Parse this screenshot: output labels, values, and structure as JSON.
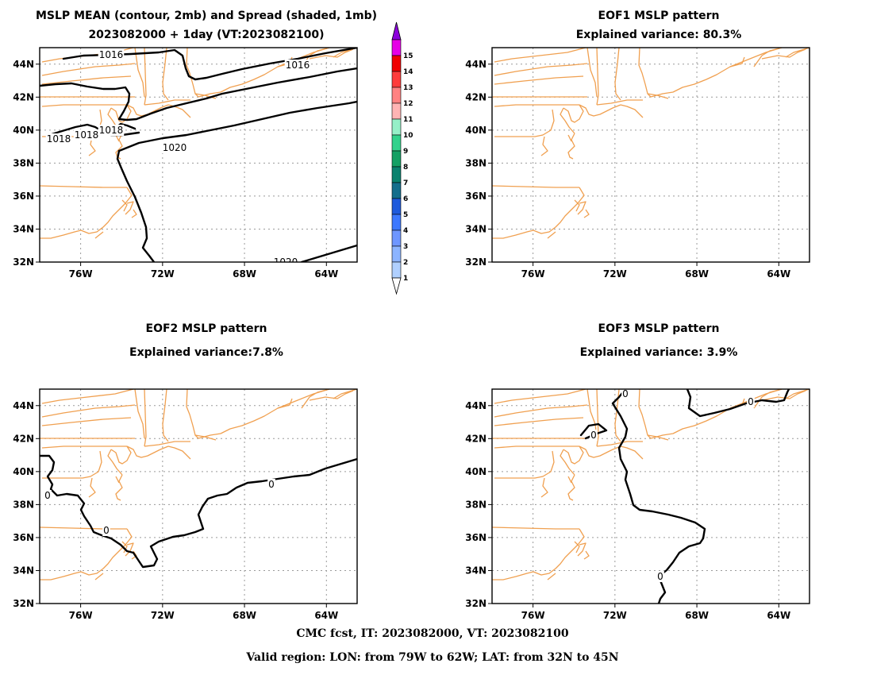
{
  "panels": [
    {
      "id": "mean",
      "title_line1": "MSLP MEAN (contour, 2mb) and Spread (shaded, 1mb)",
      "title_line2": "2023082000 + 1day (VT:2023082100)",
      "contour_labels": [
        "1016",
        "1016",
        "1018",
        "1018",
        "1018",
        "1020",
        "1020"
      ]
    },
    {
      "id": "eof1",
      "title_line1": "EOF1 MSLP pattern",
      "title_line2": "Explained variance: 80.3%",
      "explained_variance_pct": 80.3,
      "contour_labels": []
    },
    {
      "id": "eof2",
      "title_line1": "EOF2 MSLP pattern",
      "title_line2": "Explained variance:7.8%",
      "explained_variance_pct": 7.8,
      "contour_labels": [
        "0",
        "0",
        "0"
      ]
    },
    {
      "id": "eof3",
      "title_line1": "EOF3 MSLP pattern",
      "title_line2": "Explained variance: 3.9%",
      "explained_variance_pct": 3.9,
      "contour_labels": [
        "0",
        "0",
        "0",
        "0"
      ]
    }
  ],
  "map_extent": {
    "lon": [
      -78,
      -62.5
    ],
    "lat": [
      32,
      45
    ]
  },
  "lat_ticks": [
    "32N",
    "34N",
    "36N",
    "38N",
    "40N",
    "42N",
    "44N"
  ],
  "lon_ticks": [
    "76W",
    "72W",
    "68W",
    "64W"
  ],
  "lat_tick_values": [
    32,
    34,
    36,
    38,
    40,
    42,
    44
  ],
  "lon_tick_values": [
    -76,
    -72,
    -68,
    -64
  ],
  "colorbar": {
    "levels": [
      "1",
      "2",
      "3",
      "4",
      "5",
      "6",
      "7",
      "8",
      "9",
      "10",
      "11",
      "12",
      "13",
      "14",
      "15"
    ],
    "colors": [
      "#b0d0ff",
      "#8cb4ff",
      "#6e96ff",
      "#3c78ff",
      "#1e5adc",
      "#146e8c",
      "#0a826e",
      "#14a064",
      "#32d28c",
      "#96f0c8",
      "#ffb4b4",
      "#ff8282",
      "#ff3c3c",
      "#f00000",
      "#e600e6",
      "#8c00dc"
    ]
  },
  "colors": {
    "coast": "#f0a050",
    "contour": "#000000",
    "grid": "#9a9a9a"
  },
  "footer": {
    "line1": "CMC fcst, IT: 2023082000, VT: 2023082100",
    "line2": "Valid region: LON: from 79W to 62W; LAT: from 32N to 45N"
  }
}
